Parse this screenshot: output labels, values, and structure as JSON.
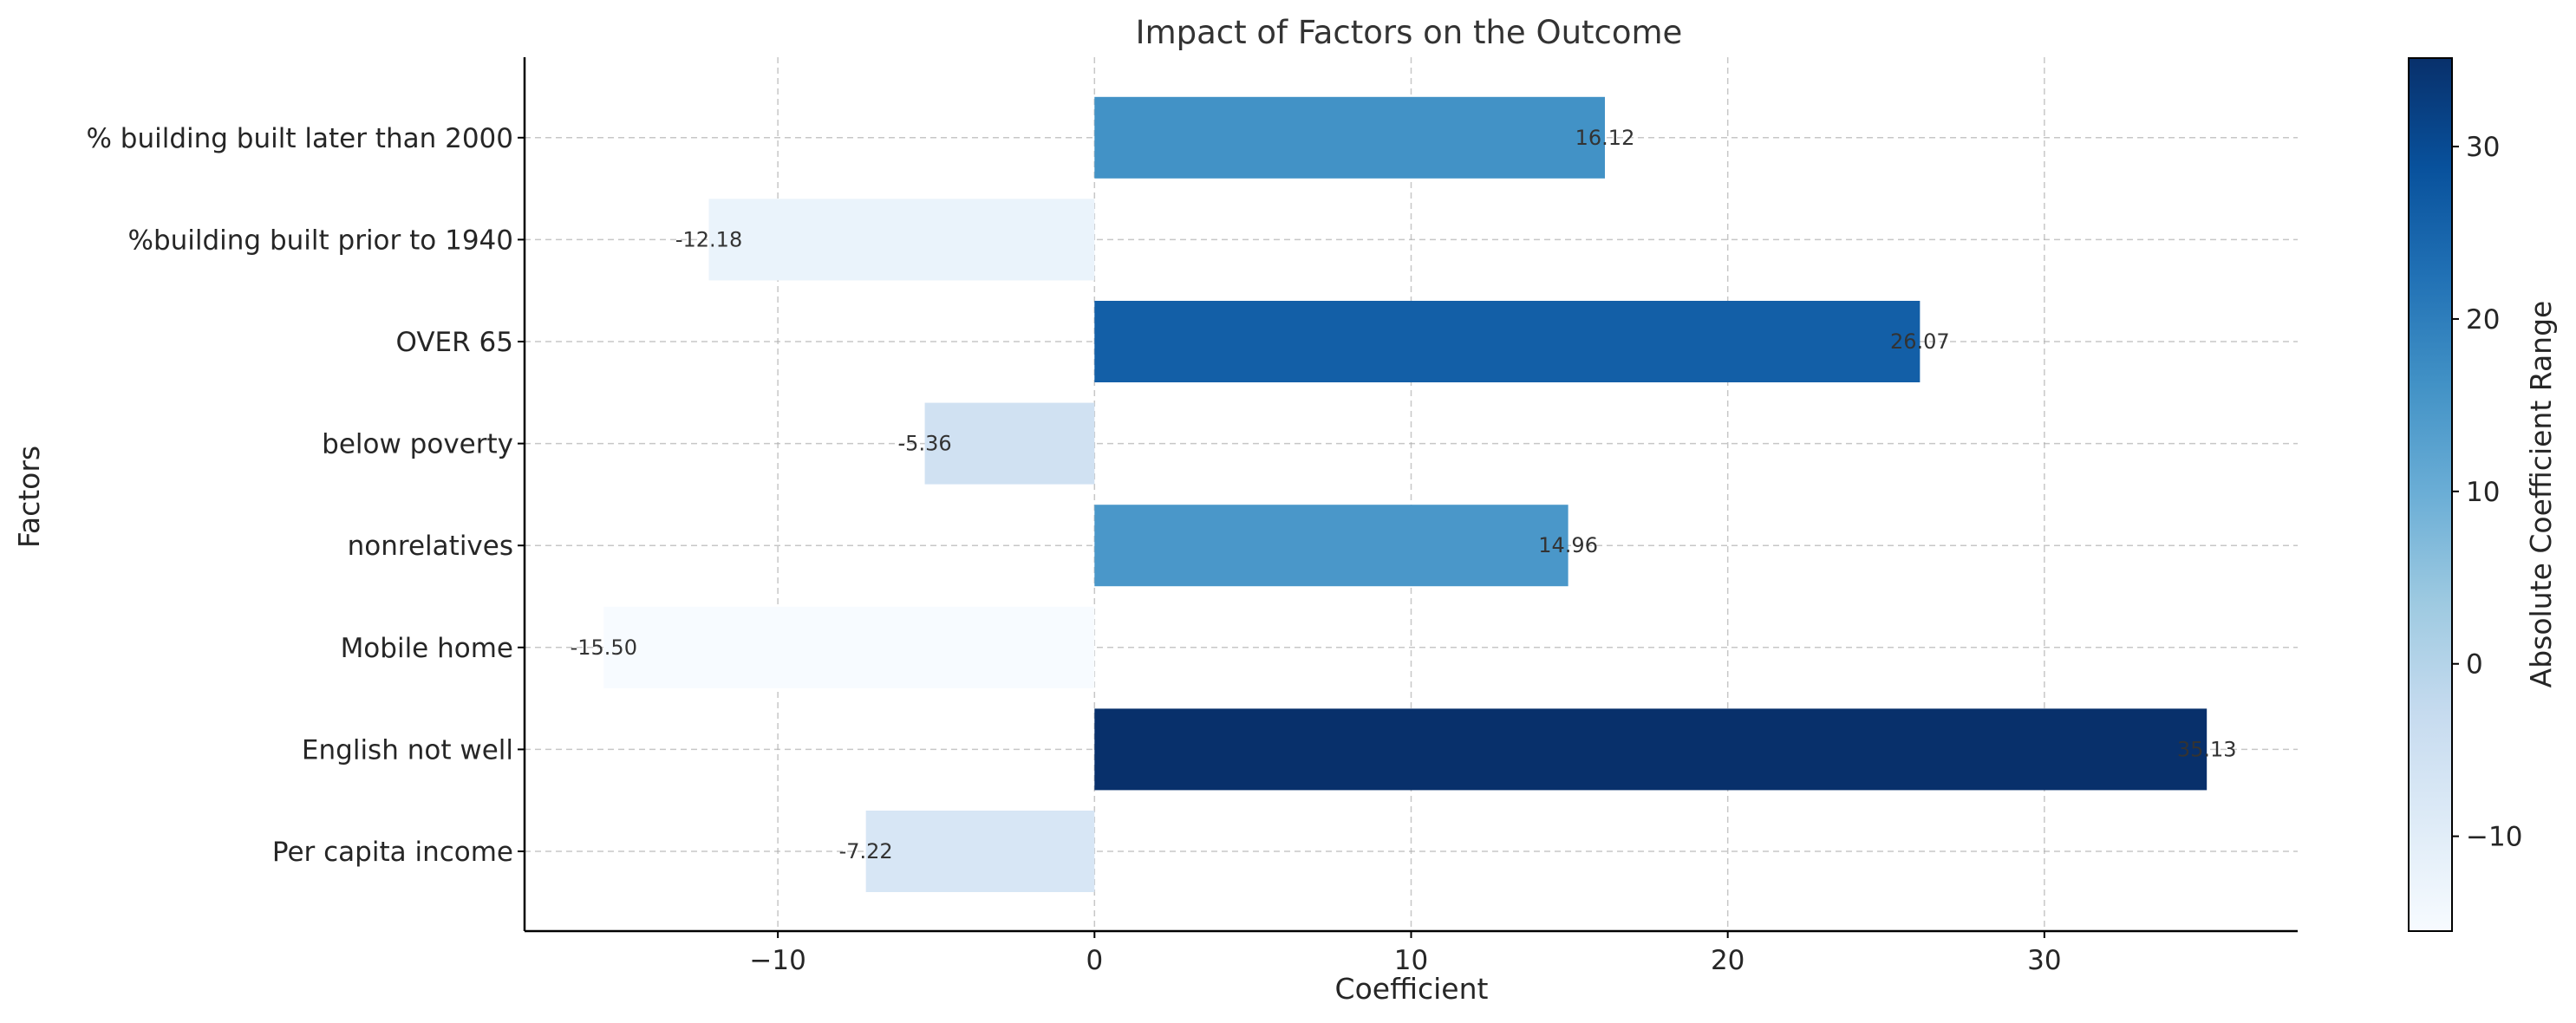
{
  "chart_data": {
    "type": "bar",
    "orientation": "horizontal",
    "title": "Impact of Factors on the Outcome",
    "xlabel": "Coefficient",
    "ylabel": "Factors",
    "categories": [
      "Per capita income",
      "English not well",
      "Mobile home",
      "nonrelatives",
      "below poverty",
      "OVER 65",
      "%building built prior to 1940",
      "% building built later than 2000"
    ],
    "values": [
      -7.22,
      35.13,
      -15.5,
      14.96,
      -5.36,
      26.07,
      -12.18,
      16.12
    ],
    "data_labels": [
      "-7.22",
      "35.13",
      "-15.50",
      "14.96",
      "-5.36",
      "26.07",
      "-12.18",
      "16.12"
    ],
    "xlim": [
      -18.0,
      38.0
    ],
    "xticks": [
      -10,
      0,
      10,
      20,
      30
    ],
    "xtick_labels": [
      "−10",
      "0",
      "10",
      "20",
      "30"
    ],
    "grid": true,
    "colorbar": {
      "label": "Absolute Coefficient Range",
      "colormap": "Blues",
      "range": [
        -15.5,
        35.13
      ],
      "ticks": [
        -10,
        0,
        10,
        20,
        30
      ],
      "tick_labels": [
        "−10",
        "0",
        "10",
        "20",
        "30"
      ],
      "position": "right"
    }
  }
}
